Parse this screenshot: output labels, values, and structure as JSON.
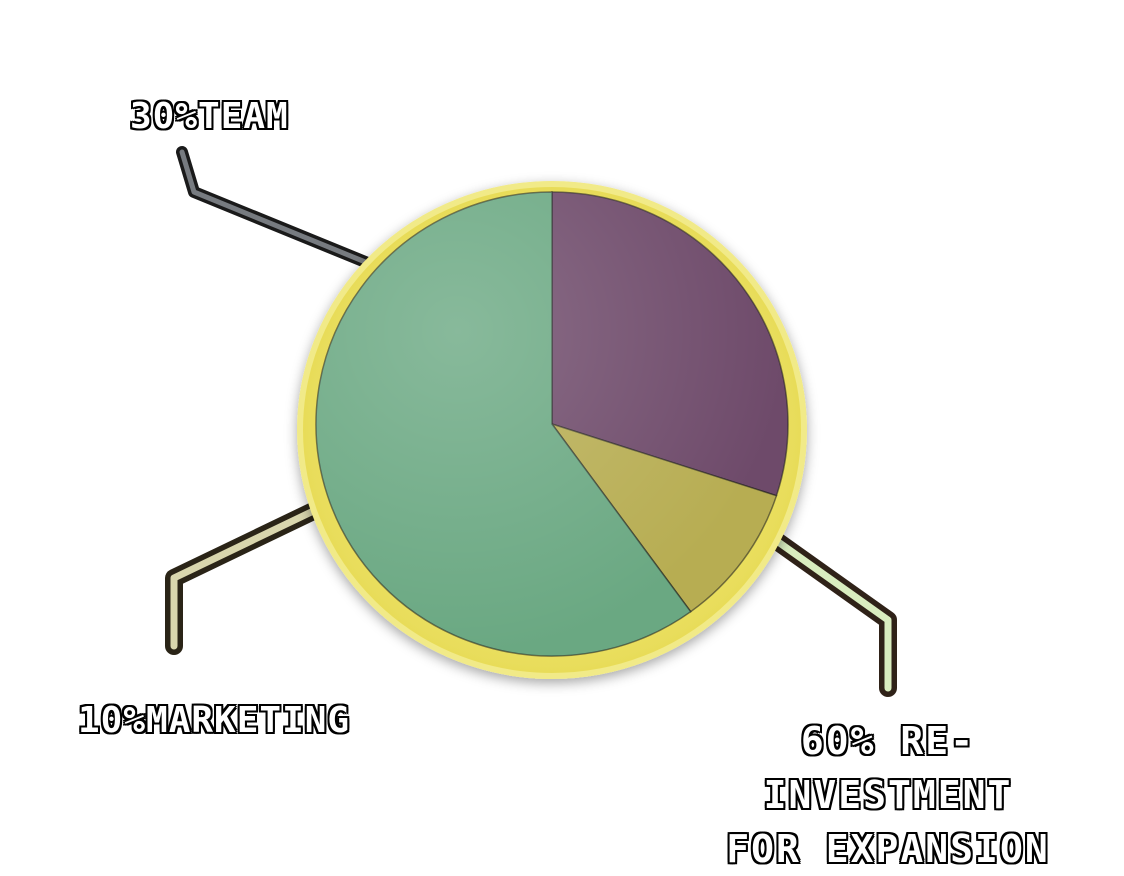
{
  "chart_data": {
    "type": "pie",
    "slices": [
      {
        "label": "30%TEAM",
        "value": 30,
        "color": "#6e4a6a"
      },
      {
        "label": "10%MARKETING",
        "value": 10,
        "color": "#b7ad52"
      },
      {
        "label": "60% RE-INVESTMENT FOR EXPANSION",
        "value": 60,
        "color": "#6aa882"
      }
    ],
    "title": "",
    "legend": "callouts"
  },
  "labels": {
    "team": "30%TEAM",
    "marketing": "10%MARKETING",
    "reinvest_line1": "60% RE-INVESTMENT",
    "reinvest_line2": "FOR EXPANSION"
  },
  "colors": {
    "rim": "#f3ee8a",
    "leader_team": "#6f7278",
    "leader_marketing": "#d8d6aa",
    "leader_reinvest": "#d9edbf"
  }
}
